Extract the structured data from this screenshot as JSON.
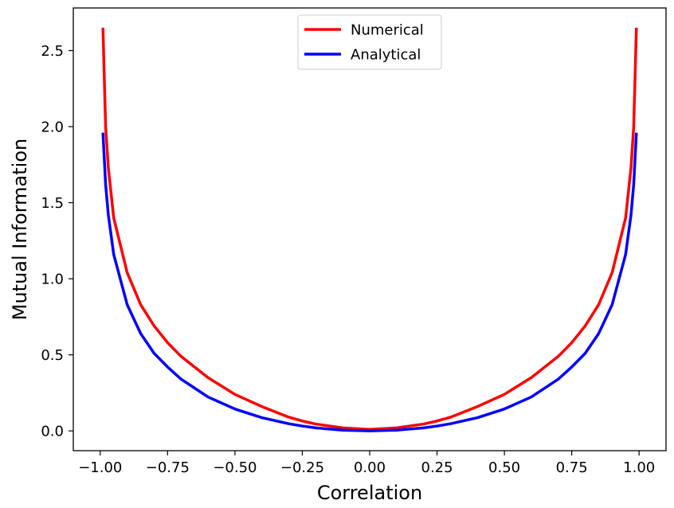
{
  "chart_data": {
    "type": "line",
    "title": "",
    "xlabel": "Correlation",
    "ylabel": "Mutual Information",
    "xlim": [
      -1.1,
      1.1
    ],
    "ylim": [
      -0.13,
      2.78
    ],
    "grid": false,
    "legend_position": "upper center",
    "x_ticks": [
      -1.0,
      -0.75,
      -0.5,
      -0.25,
      0.0,
      0.25,
      0.5,
      0.75,
      1.0
    ],
    "x_tick_labels": [
      "−1.00",
      "−0.75",
      "−0.50",
      "−0.25",
      "0.00",
      "0.25",
      "0.50",
      "0.75",
      "1.00"
    ],
    "y_ticks": [
      0.0,
      0.5,
      1.0,
      1.5,
      2.0,
      2.5
    ],
    "y_tick_labels": [
      "0.0",
      "0.5",
      "1.0",
      "1.5",
      "2.0",
      "2.5"
    ],
    "series": [
      {
        "name": "Numerical",
        "color": "#ff0000",
        "x": [
          -0.99,
          -0.98,
          -0.97,
          -0.95,
          -0.9,
          -0.85,
          -0.8,
          -0.75,
          -0.7,
          -0.6,
          -0.5,
          -0.4,
          -0.3,
          -0.25,
          -0.2,
          -0.1,
          0.0,
          0.1,
          0.2,
          0.25,
          0.3,
          0.4,
          0.5,
          0.6,
          0.7,
          0.75,
          0.8,
          0.85,
          0.9,
          0.95,
          0.97,
          0.98,
          0.99
        ],
        "values": [
          2.65,
          2.0,
          1.73,
          1.4,
          1.04,
          0.83,
          0.69,
          0.58,
          0.49,
          0.35,
          0.24,
          0.16,
          0.09,
          0.065,
          0.045,
          0.02,
          0.01,
          0.02,
          0.045,
          0.065,
          0.09,
          0.16,
          0.24,
          0.35,
          0.49,
          0.58,
          0.69,
          0.83,
          1.04,
          1.4,
          1.73,
          2.0,
          2.65
        ]
      },
      {
        "name": "Analytical",
        "color": "#0000ff",
        "x": [
          -0.99,
          -0.98,
          -0.97,
          -0.95,
          -0.9,
          -0.85,
          -0.8,
          -0.75,
          -0.7,
          -0.6,
          -0.5,
          -0.4,
          -0.3,
          -0.25,
          -0.2,
          -0.1,
          0.0,
          0.1,
          0.2,
          0.25,
          0.3,
          0.4,
          0.5,
          0.6,
          0.7,
          0.75,
          0.8,
          0.85,
          0.9,
          0.95,
          0.97,
          0.98,
          0.99
        ],
        "values": [
          1.96,
          1.62,
          1.42,
          1.16,
          0.83,
          0.64,
          0.51,
          0.42,
          0.34,
          0.223,
          0.144,
          0.087,
          0.047,
          0.032,
          0.02,
          0.005,
          0.0,
          0.005,
          0.02,
          0.032,
          0.047,
          0.087,
          0.144,
          0.223,
          0.34,
          0.42,
          0.51,
          0.64,
          0.83,
          1.16,
          1.42,
          1.62,
          1.96
        ]
      }
    ]
  }
}
